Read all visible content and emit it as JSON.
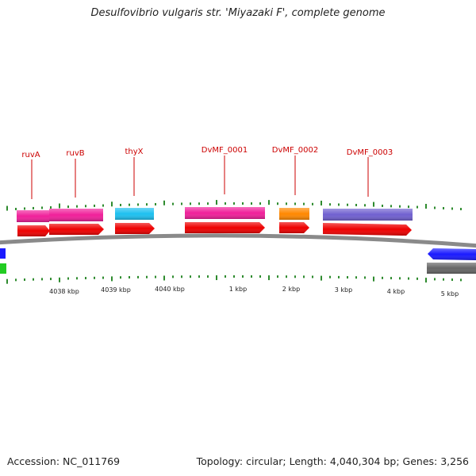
{
  "title": "Desulfovibrio vulgaris str. 'Miyazaki F', complete genome",
  "accession": "Accession: NC_011769",
  "summary": "Topology: circular; Length: 4,040,304 bp; Genes: 3,256",
  "colors": {
    "backbone": "#8a8a8a",
    "tick": "#2e8b2e",
    "gene_label": "#cc0000",
    "cds": "#ee0000",
    "blue_gene": "#1a1aff",
    "green_gene": "#22cc22",
    "gray_gene": "#666666"
  },
  "gene_labels": [
    "ruvA",
    "ruvB",
    "thyX",
    "DvMF_0001",
    "DvMF_0002",
    "DvMF_0003"
  ],
  "position_labels": [
    "4038 kbp",
    "4039 kbp",
    "4040 kbp",
    "1 kbp",
    "2 kbp",
    "3 kbp",
    "4 kbp",
    "5 kbp"
  ],
  "feature_colors": {
    "ruvA": "#f0209a",
    "ruvB": "#f0209a",
    "thyX": "#1ec0f0",
    "DvMF_0001": "#f0209a",
    "DvMF_0002": "#ff8800",
    "DvMF_0003": "#7060d0"
  }
}
